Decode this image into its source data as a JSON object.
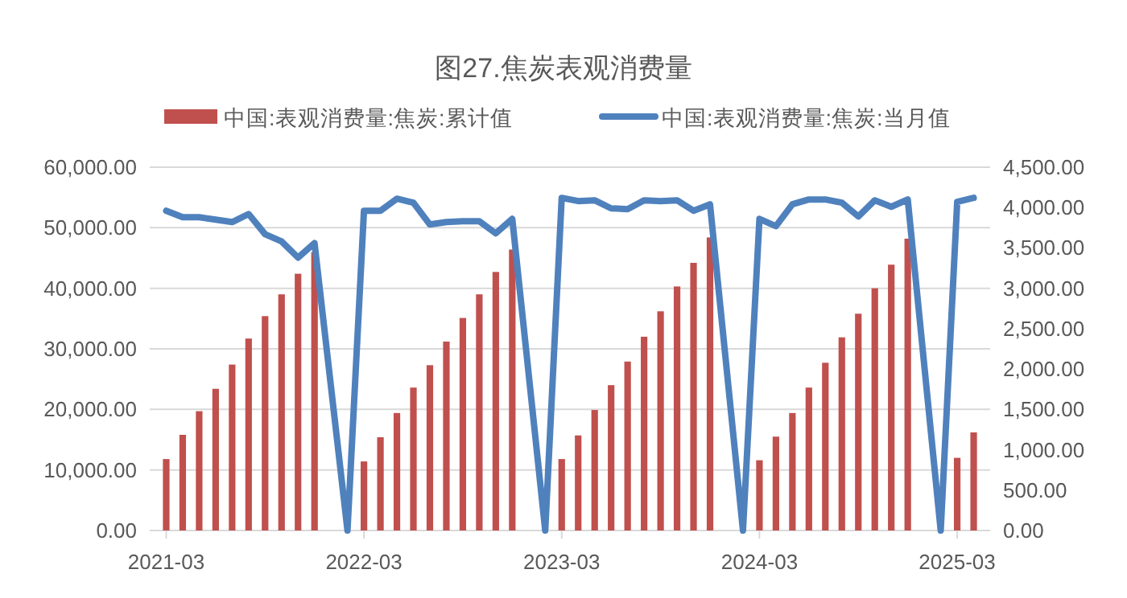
{
  "chart_data": {
    "type": "bar",
    "title": "图27.焦炭表观消费量",
    "legend": "top",
    "grid": "y",
    "xlim": [
      "2021-02",
      "2025-05"
    ],
    "xticks": [
      "2021-03",
      "2022-03",
      "2023-03",
      "2024-03",
      "2025-03"
    ],
    "ylim": [
      0,
      60000
    ],
    "yticks": [
      {
        "value": 0,
        "label": "0.00"
      },
      {
        "value": 10000,
        "label": "10,000.00"
      },
      {
        "value": 20000,
        "label": "20,000.00"
      },
      {
        "value": 30000,
        "label": "30,000.00"
      },
      {
        "value": 40000,
        "label": "40,000.00"
      },
      {
        "value": 50000,
        "label": "50,000.00"
      },
      {
        "value": 60000,
        "label": "60,000.00"
      }
    ],
    "y2lim": [
      0,
      4500
    ],
    "y2ticks": [
      {
        "value": 0,
        "label": "0.00"
      },
      {
        "value": 500,
        "label": "500.00"
      },
      {
        "value": 1000,
        "label": "1,000.00"
      },
      {
        "value": 1500,
        "label": "1,500.00"
      },
      {
        "value": 2000,
        "label": "2,000.00"
      },
      {
        "value": 2500,
        "label": "2,500.00"
      },
      {
        "value": 3000,
        "label": "3,000.00"
      },
      {
        "value": 3500,
        "label": "3,500.00"
      },
      {
        "value": 4000,
        "label": "4,000.00"
      },
      {
        "value": 4500,
        "label": "4,500.00"
      }
    ],
    "series": [
      {
        "name": "中国:表观消费量:焦炭:累计值",
        "color": "#c0504d",
        "x": [
          "2021-03",
          "2021-04",
          "2021-05",
          "2021-06",
          "2021-07",
          "2021-08",
          "2021-09",
          "2021-10",
          "2021-11",
          "2021-12",
          "2022-03",
          "2022-04",
          "2022-05",
          "2022-06",
          "2022-07",
          "2022-08",
          "2022-09",
          "2022-10",
          "2022-11",
          "2022-12",
          "2023-03",
          "2023-04",
          "2023-05",
          "2023-06",
          "2023-07",
          "2023-08",
          "2023-09",
          "2023-10",
          "2023-11",
          "2023-12",
          "2024-03",
          "2024-04",
          "2024-05",
          "2024-06",
          "2024-07",
          "2024-08",
          "2024-09",
          "2024-10",
          "2024-11",
          "2024-12",
          "2025-03",
          "2025-04"
        ],
        "values": [
          11800,
          15800,
          19700,
          23400,
          27400,
          31700,
          35400,
          39000,
          42400,
          46000,
          11400,
          15400,
          19400,
          23600,
          27300,
          31200,
          35100,
          39000,
          42700,
          46400,
          11800,
          15700,
          19900,
          24000,
          27900,
          32000,
          36200,
          40300,
          44200,
          48400,
          11600,
          15500,
          19400,
          23600,
          27700,
          31900,
          35800,
          40000,
          43900,
          48200,
          12000,
          16200
        ]
      },
      {
        "name": "中国:表观消费量:焦炭:当月值",
        "type": "line",
        "axis": "y2",
        "color": "#4f81bd",
        "x": [
          "2021-03",
          "2021-04",
          "2021-05",
          "2021-06",
          "2021-07",
          "2021-08",
          "2021-09",
          "2021-10",
          "2021-11",
          "2021-12",
          "2022-02",
          "2022-03",
          "2022-04",
          "2022-05",
          "2022-06",
          "2022-07",
          "2022-08",
          "2022-09",
          "2022-10",
          "2022-11",
          "2022-12",
          "2023-02",
          "2023-03",
          "2023-04",
          "2023-05",
          "2023-06",
          "2023-07",
          "2023-08",
          "2023-09",
          "2023-10",
          "2023-11",
          "2023-12",
          "2024-02",
          "2024-03",
          "2024-04",
          "2024-05",
          "2024-06",
          "2024-07",
          "2024-08",
          "2024-09",
          "2024-10",
          "2024-11",
          "2024-12",
          "2025-02",
          "2025-03",
          "2025-04"
        ],
        "values": [
          3960,
          3880,
          3880,
          3850,
          3820,
          3920,
          3670,
          3580,
          3380,
          3560,
          0,
          3960,
          3960,
          4110,
          4060,
          3790,
          3820,
          3830,
          3830,
          3680,
          3860,
          0,
          4120,
          4080,
          4090,
          3990,
          3980,
          4090,
          4080,
          4090,
          3960,
          4040,
          0,
          3860,
          3770,
          4040,
          4100,
          4100,
          4060,
          3890,
          4090,
          4010,
          4100,
          0,
          4070,
          4120
        ]
      }
    ]
  }
}
